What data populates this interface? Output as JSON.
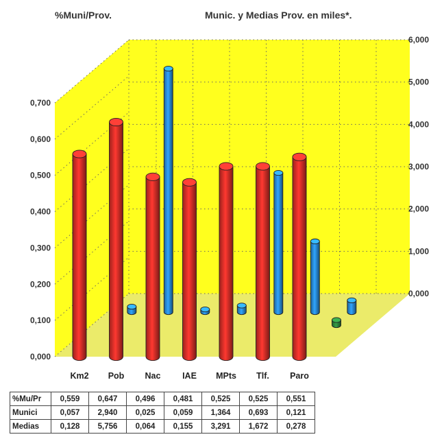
{
  "chart_data": {
    "type": "bar",
    "title_left": "%Muni/Prov.",
    "title_right": "Munic. y Medias Prov. en miles*.",
    "categories": [
      "Km2",
      "Pob",
      "Nac",
      "IAE",
      "MPts",
      "Tlf.",
      "Paro"
    ],
    "left_axis": {
      "ticks": [
        "0,000",
        "0,100",
        "0,200",
        "0,300",
        "0,400",
        "0,500",
        "0,600",
        "0,700"
      ],
      "range": [
        0,
        0.7
      ]
    },
    "right_axis": {
      "ticks": [
        "0,000",
        "1,000",
        "2,000",
        "3,000",
        "4,000",
        "5,000",
        "6,000"
      ],
      "range": [
        0,
        6
      ]
    },
    "series": [
      {
        "name": "%Mu/Pr",
        "axis": "left",
        "values": [
          0.559,
          0.647,
          0.496,
          0.481,
          0.525,
          0.525,
          0.551
        ]
      },
      {
        "name": "Munici",
        "axis": "right",
        "values": [
          0.057,
          2.94,
          0.025,
          0.059,
          1.364,
          0.693,
          0.121
        ]
      },
      {
        "name": "Medias",
        "axis": "right",
        "values": [
          0.128,
          5.756,
          0.064,
          0.155,
          3.291,
          1.672,
          0.278
        ]
      }
    ],
    "grid": true,
    "background": "#ffff1e",
    "colors": {
      "pct": "#e0312a",
      "munici": "#2f8a3e",
      "medias": "#2a8fdc"
    }
  },
  "table": {
    "rows": [
      {
        "label": "%Mu/Pr",
        "cells": [
          "0,559",
          "0,647",
          "0,496",
          "0,481",
          "0,525",
          "0,525",
          "0,551"
        ]
      },
      {
        "label": "Munici",
        "cells": [
          "0,057",
          "2,940",
          "0,025",
          "0,059",
          "1,364",
          "0,693",
          "0,121"
        ]
      },
      {
        "label": "Medias",
        "cells": [
          "0,128",
          "5,756",
          "0,064",
          "0,155",
          "3,291",
          "1,672",
          "0,278"
        ]
      }
    ]
  }
}
